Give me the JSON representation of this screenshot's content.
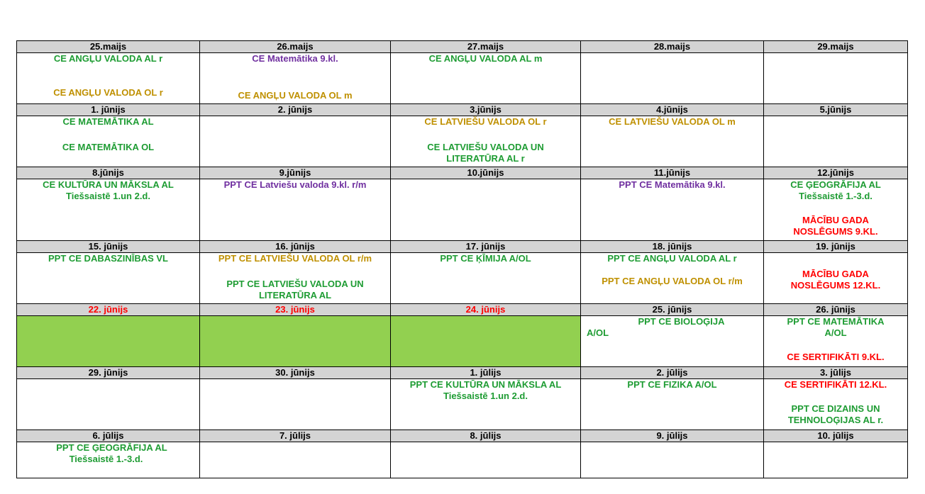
{
  "weeks": [
    {
      "dates": [
        "25.maijs",
        "26.maijs",
        "27.maijs",
        "28.maijs",
        "29.maijs"
      ],
      "cells": [
        [
          "CE ANGĻU VALODA AL r",
          "CE ANGĻU VALODA OL r"
        ],
        [
          "CE Matemātika 9.kl.",
          "CE ANGĻU VALODA OL m"
        ],
        [
          "CE ANGĻU VALODA AL m"
        ],
        [],
        []
      ]
    },
    {
      "dates": [
        "1. jūnijs",
        "2. jūnijs",
        "3.jūnijs",
        "4.jūnijs",
        "5.jūnijs"
      ],
      "cells": [
        [
          "CE MATEMĀTIKA AL",
          "CE MATEMĀTIKA OL"
        ],
        [],
        [
          "CE LATVIEŠU VALODA  OL r",
          "CE LATVIEŠU VALODA UN LITERATŪRA  AL r"
        ],
        [
          "CE LATVIEŠU VALODA  OL m"
        ],
        []
      ]
    },
    {
      "dates": [
        "8.jūnijs",
        "9.jūnijs",
        "10.jūnijs",
        "11.jūnijs",
        "12.jūnijs"
      ],
      "cells": [
        [
          "CE KULTŪRA UN MĀKSLA   AL",
          "Tiešsaistē 1.un 2.d."
        ],
        [
          "PPT CE Latviešu valoda 9.kl. r/m"
        ],
        [],
        [
          "PPT CE Matemātika 9.kl."
        ],
        [
          "CE ĢEOGRĀFIJA   AL",
          "Tiešsaistē 1.-3.d.",
          "MĀCĪBU GADA",
          "NOSLĒGUMS 9.KL."
        ]
      ]
    },
    {
      "dates": [
        "15. jūnijs",
        "16. jūnijs",
        "17. jūnijs",
        "18. jūnijs",
        "19. jūnijs"
      ],
      "cells": [
        [
          "PPT CE DABASZINĪBAS VL"
        ],
        [
          "PPT CE LATVIEŠU VALODA  OL r/m",
          "PPT CE LATVIEŠU VALODA UN",
          "LITERATŪRA  AL"
        ],
        [
          "PPT CE ĶĪMIJA A/OL"
        ],
        [
          "PPT CE ANGĻU VALODA AL r",
          "PPT CE ANGĻU VALODA OL r/m"
        ],
        [
          "MĀCĪBU GADA",
          "NOSLĒGUMS 12.KL."
        ]
      ]
    },
    {
      "dates": [
        "22. jūnijs",
        "23. jūnijs",
        "24. jūnijs",
        "25. jūnijs",
        "26. jūnijs"
      ],
      "cells": [
        [],
        [],
        [],
        [
          "PPT CE BIOLOĢIJA",
          "A/OL"
        ],
        [
          "PPT CE MATEMĀTIKA",
          "A/OL",
          "CE SERTIFIKĀTI 9.KL."
        ]
      ]
    },
    {
      "dates": [
        "29. jūnijs",
        "30. jūnijs",
        "1. jūlijs",
        "2. jūlijs",
        "3. jūlijs"
      ],
      "cells": [
        [],
        [],
        [
          "PPT CE KULTŪRA UN MĀKSLA   AL",
          "Tiešsaistē 1.un 2.d."
        ],
        [
          "PPT CE FIZIKA A/OL"
        ],
        [
          "CE SERTIFIKĀTI 12.KL.",
          "PPT CE DIZAINS UN",
          "TEHNOLOĢIJAS AL r."
        ]
      ]
    },
    {
      "dates": [
        "6. jūlijs",
        "7. jūlijs",
        "8. jūlijs",
        "9. jūlijs",
        "10. jūlijs"
      ],
      "cells": [
        [
          "PPT CE ĢEOGRĀFIJA   AL",
          "Tiešsaistē 1.-3.d."
        ],
        [],
        [],
        [],
        []
      ]
    }
  ],
  "colors": {
    "header_bg": "#d4d4d4",
    "holiday_fill": "#92d050",
    "green_text": "#1e9c33",
    "gold_text": "#bf9000",
    "purple_text": "#7030a0",
    "red_text": "#ff0000"
  }
}
